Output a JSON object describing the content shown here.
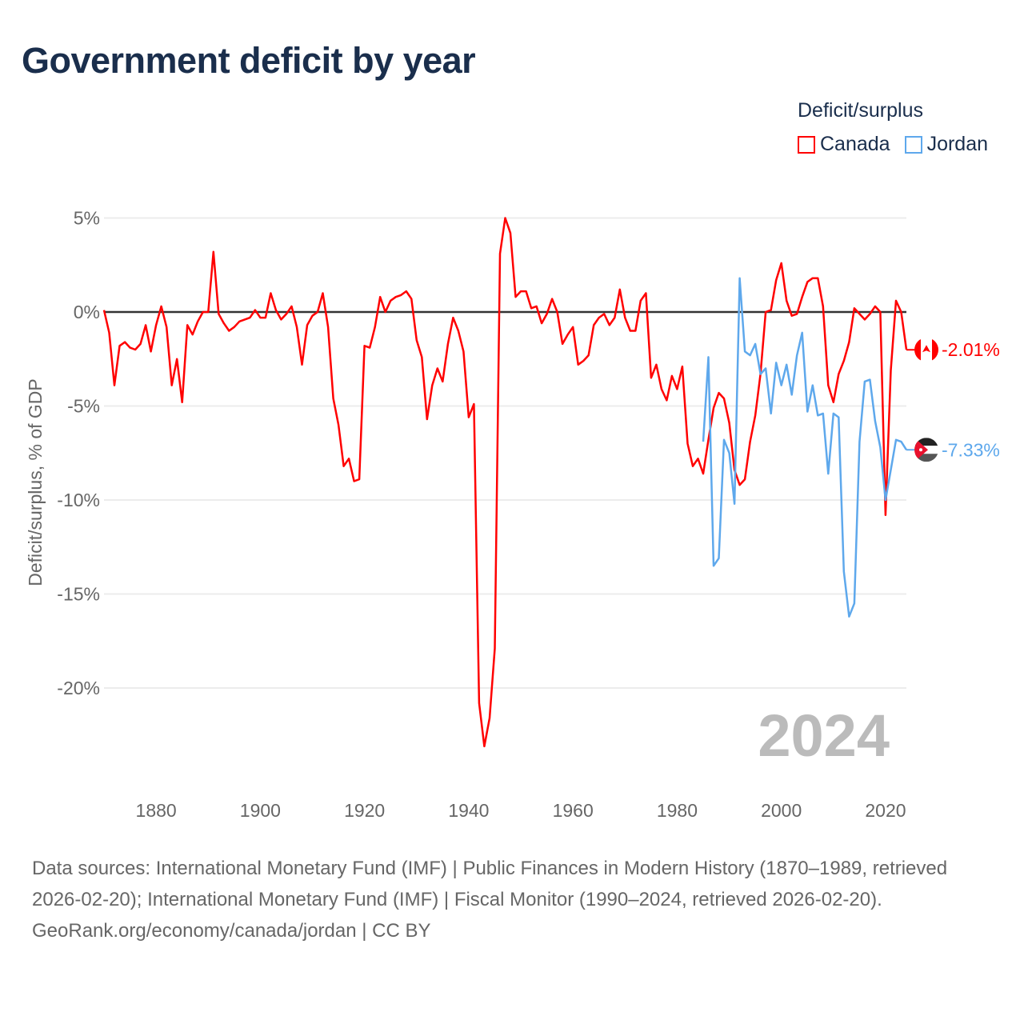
{
  "title": "Government deficit by year",
  "legend": {
    "title": "Deficit/surplus",
    "items": [
      {
        "label": "Canada",
        "color": "#ff0000"
      },
      {
        "label": "Jordan",
        "color": "#5ea8ec"
      }
    ]
  },
  "footer": {
    "sources": "Data sources: International Monetary Fund (IMF) | Public Finances in Modern History (1870–1989, retrieved 2026-02-20); International Monetary Fund (IMF) | Fiscal Monitor (1990–2024, retrieved 2026-02-20).",
    "credit": "GeoRank.org/economy/canada/jordan | CC BY"
  },
  "chart_data": {
    "type": "line",
    "title": "Government deficit by year",
    "ylabel": "Deficit/surplus, % of GDP",
    "xlabel": "",
    "xlim": [
      1870,
      2024
    ],
    "ylim": [
      -24,
      5.5
    ],
    "xticks": [
      1880,
      1900,
      1920,
      1940,
      1960,
      1980,
      2000,
      2020
    ],
    "yticks": [
      5,
      0,
      -5,
      -10,
      -15,
      -20
    ],
    "ytick_labels": [
      "5%",
      "0%",
      "-5%",
      "-10%",
      "-15%",
      "-20%"
    ],
    "year_watermark": "2024",
    "grid": true,
    "series": [
      {
        "name": "Canada",
        "color": "#ff0000",
        "start_year": 1870,
        "end_label": "-2.01%",
        "flag": "canada-flag",
        "values": [
          0.1,
          -1.1,
          -3.9,
          -1.8,
          -1.6,
          -1.9,
          -2.0,
          -1.7,
          -0.7,
          -2.1,
          -0.7,
          0.3,
          -0.8,
          -3.9,
          -2.5,
          -4.8,
          -0.7,
          -1.2,
          -0.5,
          0,
          0,
          3.2,
          -0.1,
          -0.6,
          -1.0,
          -0.8,
          -0.5,
          -0.4,
          -0.3,
          0.1,
          -0.3,
          -0.3,
          1.0,
          0.1,
          -0.4,
          -0.1,
          0.3,
          -0.8,
          -2.8,
          -0.7,
          -0.2,
          0,
          1.0,
          -0.8,
          -4.6,
          -6.0,
          -8.2,
          -7.8,
          -9.0,
          -8.9,
          -1.8,
          -1.9,
          -0.8,
          0.8,
          0,
          0.6,
          0.8,
          0.9,
          1.1,
          0.7,
          -1.5,
          -2.4,
          -5.7,
          -3.9,
          -3.0,
          -3.7,
          -1.7,
          -0.3,
          -1.0,
          -2.1,
          -5.6,
          -4.9,
          -20.8,
          -23.1,
          -21.6,
          -17.9,
          3.1,
          5.0,
          4.2,
          0.8,
          1.1,
          1.1,
          0.2,
          0.3,
          -0.6,
          -0.1,
          0.7,
          0,
          -1.7,
          -1.2,
          -0.8,
          -2.8,
          -2.6,
          -2.3,
          -0.7,
          -0.3,
          -0.1,
          -0.7,
          -0.3,
          1.2,
          -0.3,
          -1.0,
          -1.0,
          0.6,
          1.0,
          -3.5,
          -2.8,
          -4.1,
          -4.7,
          -3.4,
          -4.1,
          -2.9,
          -7.0,
          -8.2,
          -7.8,
          -8.6,
          -6.8,
          -5.1,
          -4.3,
          -4.6,
          -5.9,
          -8.4,
          -9.2,
          -8.9,
          -6.9,
          -5.5,
          -3.3,
          0,
          0.1,
          1.7,
          2.6,
          0.6,
          -0.2,
          -0.1,
          0.8,
          1.6,
          1.8,
          1.8,
          0.3,
          -3.9,
          -4.8,
          -3.3,
          -2.6,
          -1.6,
          0.2,
          -0.1,
          -0.4,
          -0.1,
          0.3,
          0,
          -10.8,
          -3.1,
          0.6,
          0,
          -2.01
        ]
      },
      {
        "name": "Jordan",
        "color": "#5ea8ec",
        "start_year": 1985,
        "end_label": "-7.33%",
        "flag": "jordan-flag",
        "values": [
          -6.9,
          -2.4,
          -13.5,
          -13.1,
          -6.8,
          -7.5,
          -10.2,
          1.8,
          -2.1,
          -2.3,
          -1.7,
          -3.3,
          -3.0,
          -5.4,
          -2.7,
          -3.9,
          -2.8,
          -4.4,
          -2.3,
          -1.1,
          -5.3,
          -3.9,
          -5.5,
          -5.4,
          -8.6,
          -5.4,
          -5.6,
          -13.8,
          -16.2,
          -15.5,
          -6.9,
          -3.7,
          -3.6,
          -5.8,
          -7.2,
          -10.0,
          -8.4,
          -6.8,
          -6.9,
          -7.33
        ]
      }
    ]
  }
}
